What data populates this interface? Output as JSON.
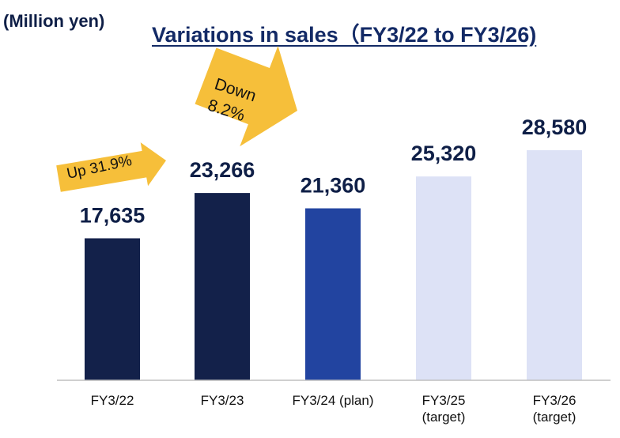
{
  "unit_label": "(Million yen)",
  "chart_data": {
    "type": "bar",
    "title": "Variations in sales（FY3/22 to FY3/26)",
    "xlabel": "",
    "ylabel": "",
    "ylim": [
      0,
      30000
    ],
    "grid": false,
    "categories": [
      [
        "FY3/22"
      ],
      [
        "FY3/23"
      ],
      [
        "FY3/24 (plan)"
      ],
      [
        "FY3/25",
        "(target)"
      ],
      [
        "FY3/26",
        "(target)"
      ]
    ],
    "values": [
      17635,
      23266,
      21360,
      25320,
      28580
    ],
    "value_labels": [
      "17,635",
      "23,266",
      "21,360",
      "25,320",
      "28,580"
    ],
    "colors": [
      "#13214a",
      "#13214a",
      "#2244a0",
      "#dde2f6",
      "#dde2f6"
    ],
    "annotations": [
      {
        "lines": [
          "Up 31.9%"
        ],
        "from": 0,
        "to": 1,
        "color": "#f6bf3a"
      },
      {
        "lines": [
          "Down",
          "8.2%"
        ],
        "from": 1,
        "to": 2,
        "color": "#f6bf3a"
      }
    ]
  }
}
